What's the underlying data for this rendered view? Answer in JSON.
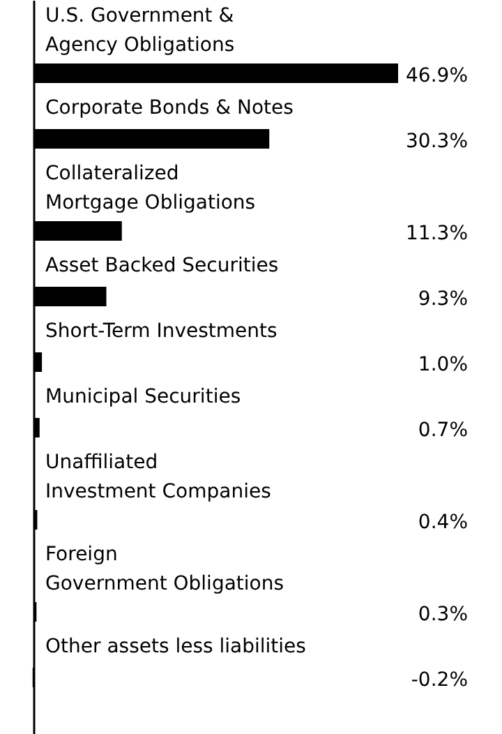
{
  "chart_data": {
    "type": "bar",
    "orientation": "horizontal",
    "categories": [
      "U.S. Government &\nAgency Obligations",
      "Corporate Bonds & Notes",
      "Collateralized\nMortgage Obligations",
      "Asset Backed Securities",
      "Short-Term Investments",
      "Municipal Securities",
      "Unaffiliated\nInvestment Companies",
      "Foreign\nGovernment Obligations",
      "Other assets less liabilities"
    ],
    "values": [
      46.9,
      30.3,
      11.3,
      9.3,
      1.0,
      0.7,
      0.4,
      0.3,
      -0.2
    ],
    "value_labels": [
      "46.9%",
      "30.3%",
      "11.3%",
      "9.3%",
      "1.0%",
      "0.7%",
      "0.4%",
      "0.3%",
      "-0.2%"
    ],
    "color": "#000000"
  }
}
